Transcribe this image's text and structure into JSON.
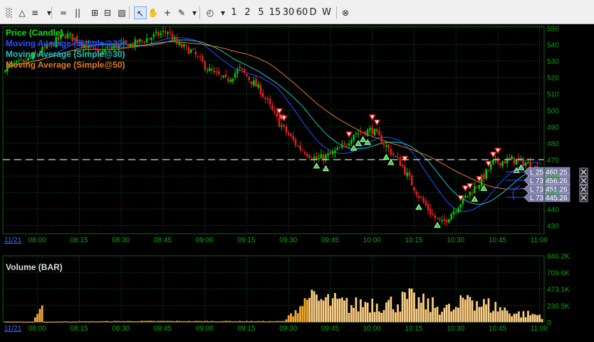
{
  "toolbar": {
    "tools": [
      {
        "name": "chart-type-icon",
        "glyph": "░"
      },
      {
        "name": "draw-tools-icon",
        "glyph": "△"
      },
      {
        "name": "indicators-icon",
        "glyph": "≡"
      },
      {
        "name": "dropdown-icon",
        "glyph": "▾"
      },
      {
        "name": "horizontal-lines-icon",
        "glyph": "="
      },
      {
        "name": "vertical-lines-icon",
        "glyph": "||"
      },
      {
        "name": "zoom-fit-icon",
        "glyph": "⊞"
      },
      {
        "name": "zoom-in-icon",
        "glyph": "⊟"
      },
      {
        "name": "zoom-area-icon",
        "glyph": "▧"
      },
      {
        "name": "cursor-icon",
        "glyph": "↖"
      },
      {
        "name": "pan-hand-icon",
        "glyph": "✋"
      },
      {
        "name": "crosshair-icon",
        "glyph": "+"
      },
      {
        "name": "pencil-icon",
        "glyph": "✎"
      },
      {
        "name": "pencil-dropdown-icon",
        "glyph": "▾"
      },
      {
        "name": "clock-icon",
        "glyph": "◴"
      },
      {
        "name": "clock-dropdown-icon",
        "glyph": "▾"
      }
    ],
    "intervals": [
      "1",
      "2",
      "5",
      "15",
      "30",
      "60",
      "D",
      "W"
    ],
    "close_glyph": "⊗"
  },
  "legend": {
    "price": "Price (Candle)",
    "ma20": "Moving Average (Simple@20)",
    "ma30": "Moving Average (Simple@30)",
    "ma50": "Moving Average (Simple@50)",
    "volume": "Volume (BAR)"
  },
  "colors": {
    "up_candle": "#00c800",
    "down_candle": "#dd2020",
    "ma20": "#2a4cff",
    "ma30": "#1fc4c4",
    "ma50": "#e07a28",
    "grid": "#156015",
    "axis_text": "#0aa60a",
    "volume_bar": "#f0a830",
    "order_panel": "#7b7ba8"
  },
  "chart_data": {
    "type": "candlestick",
    "date_label": "11/21",
    "price_axis": {
      "ticks": [
        550,
        540,
        530,
        520,
        510,
        500,
        490,
        480,
        470,
        460,
        450,
        440,
        430
      ],
      "range": [
        425,
        551
      ]
    },
    "time_ticks": [
      "08:00",
      "08:15",
      "08:30",
      "08:45",
      "09:00",
      "09:15",
      "09:30",
      "09:45",
      "10:00",
      "10:15",
      "10:30",
      "10:45",
      "11:00"
    ],
    "volume_axis": {
      "ticks": [
        "946.2K",
        "709.6K",
        "473.1K",
        "236.5K",
        "0"
      ],
      "max": 946200
    },
    "horizontal_level": 470,
    "orders": [
      {
        "label": "L 25",
        "price": "460.25"
      },
      {
        "label": "L 73",
        "price": "456.26"
      },
      {
        "label": "L 73",
        "price": "451.26"
      },
      {
        "label": "L 73",
        "price": "445.26"
      }
    ],
    "close_keyframes": [
      [
        0,
        526
      ],
      [
        8,
        529
      ],
      [
        20,
        540
      ],
      [
        26,
        546
      ],
      [
        32,
        542
      ],
      [
        40,
        534
      ],
      [
        47,
        539
      ],
      [
        55,
        540
      ],
      [
        62,
        544
      ],
      [
        70,
        548
      ],
      [
        74,
        540
      ],
      [
        80,
        536
      ],
      [
        88,
        524
      ],
      [
        95,
        518
      ],
      [
        101,
        525
      ],
      [
        110,
        512
      ],
      [
        118,
        492
      ],
      [
        126,
        478
      ],
      [
        134,
        470
      ],
      [
        140,
        473
      ],
      [
        146,
        478
      ],
      [
        150,
        486
      ],
      [
        158,
        488
      ],
      [
        164,
        478
      ],
      [
        170,
        468
      ],
      [
        178,
        448
      ],
      [
        184,
        436
      ],
      [
        188,
        431
      ],
      [
        196,
        444
      ],
      [
        204,
        456
      ],
      [
        210,
        468
      ],
      [
        218,
        470
      ],
      [
        224,
        468
      ],
      [
        231,
        462
      ]
    ],
    "volume_keyframes": [
      [
        0,
        5
      ],
      [
        12,
        4
      ],
      [
        16,
        180
      ],
      [
        17,
        4
      ],
      [
        60,
        12
      ],
      [
        120,
        10
      ],
      [
        130,
        320
      ],
      [
        131,
        950
      ],
      [
        132,
        380
      ],
      [
        140,
        360
      ],
      [
        150,
        280
      ],
      [
        156,
        360
      ],
      [
        165,
        320
      ],
      [
        174,
        400
      ],
      [
        182,
        300
      ],
      [
        188,
        260
      ],
      [
        194,
        200
      ],
      [
        198,
        420
      ],
      [
        200,
        540
      ],
      [
        204,
        320
      ],
      [
        210,
        280
      ],
      [
        220,
        150
      ],
      [
        231,
        120
      ]
    ]
  }
}
